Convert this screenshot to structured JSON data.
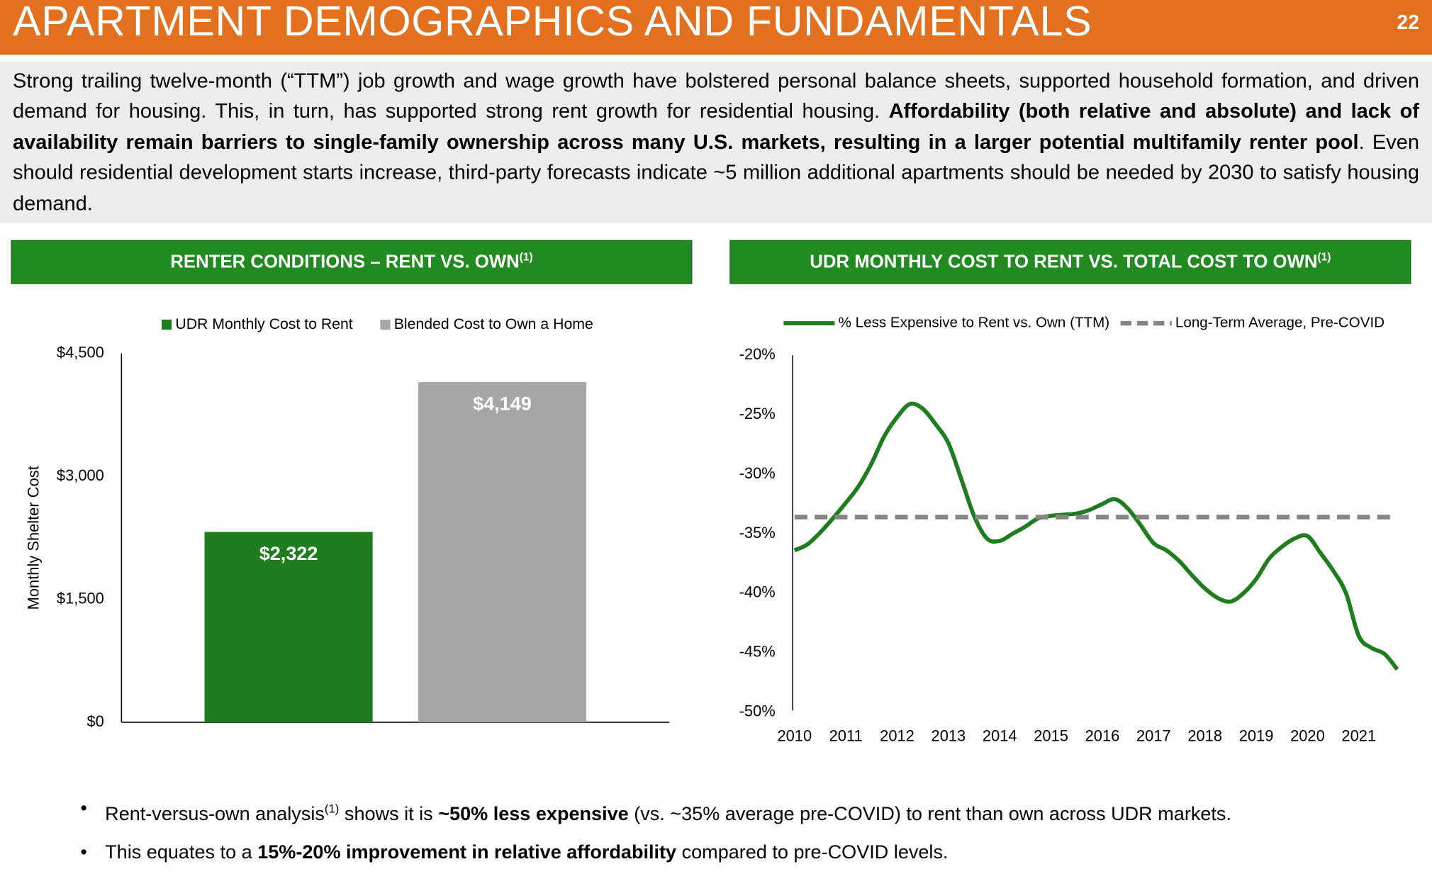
{
  "header": {
    "title": "APARTMENT DEMOGRAPHICS AND FUNDAMENTALS",
    "page": "22"
  },
  "intro": [
    {
      "text": "Strong trailing twelve-month (“TTM”) job growth and wage growth have bolstered personal balance sheets, supported household formation, and driven demand for housing. This, in turn, has supported strong rent growth for residential housing. "
    },
    {
      "text": "Affordability (both relative and absolute) and lack of availability remain barriers to single-family ownership across many U.S. markets, resulting in a larger potential multifamily renter pool",
      "bold": true
    },
    {
      "text": ". Even should residential development starts increase, third-party forecasts indicate ~5 million additional apartments should be needed by 2030 to satisfy housing demand."
    }
  ],
  "chart_data": [
    {
      "type": "bar",
      "title": "RENTER CONDITIONS – RENT VS. OWN",
      "title_note": "(1)",
      "ylabel": "Monthly Shelter Cost",
      "categories": [
        null
      ],
      "series": [
        {
          "name": "UDR Monthly Cost to Rent",
          "color": "#1f7d1f",
          "values": [
            2322
          ],
          "value_labels": [
            "$2,322"
          ]
        },
        {
          "name": "Blended Cost to Own a Home",
          "color": "#a6a6a6",
          "values": [
            4149
          ],
          "value_labels": [
            "$4,149"
          ]
        }
      ],
      "ylim": [
        0,
        4500
      ],
      "yticks": [
        {
          "value": 0,
          "label": "$0"
        },
        {
          "value": 1500,
          "label": "$1,500"
        },
        {
          "value": 3000,
          "label": "$3,000"
        },
        {
          "value": 4500,
          "label": "$4,500"
        }
      ],
      "grid": false
    },
    {
      "type": "line",
      "title": "UDR MONTHLY COST TO RENT VS. TOTAL COST TO OWN",
      "title_note": "(1)",
      "x": [
        2010,
        2010.25,
        2010.5,
        2010.75,
        2011,
        2011.25,
        2011.5,
        2011.75,
        2012,
        2012.25,
        2012.5,
        2012.75,
        2013,
        2013.25,
        2013.5,
        2013.75,
        2014,
        2014.25,
        2014.5,
        2014.75,
        2015,
        2015.25,
        2015.5,
        2015.75,
        2016,
        2016.25,
        2016.5,
        2016.75,
        2017,
        2017.25,
        2017.5,
        2017.75,
        2018,
        2018.25,
        2018.5,
        2018.75,
        2019,
        2019.25,
        2019.5,
        2019.75,
        2020,
        2020.25,
        2020.5,
        2020.75,
        2021,
        2021.25,
        2021.5,
        2021.75
      ],
      "series": [
        {
          "name": "% Less Expensive to Rent vs. Own (TTM)",
          "color": "#1f7d1f",
          "dashed": false,
          "values": [
            -36.4,
            -35.9,
            -34.9,
            -33.7,
            -32.4,
            -31.0,
            -29.1,
            -26.8,
            -25.2,
            -24.1,
            -24.5,
            -25.8,
            -27.4,
            -30.4,
            -33.5,
            -35.4,
            -35.6,
            -35.0,
            -34.4,
            -33.7,
            -33.5,
            -33.4,
            -33.3,
            -33.0,
            -32.5,
            -32.1,
            -32.9,
            -34.3,
            -35.8,
            -36.4,
            -37.3,
            -38.5,
            -39.6,
            -40.4,
            -40.7,
            -40.0,
            -38.8,
            -37.1,
            -36.1,
            -35.4,
            -35.2,
            -36.6,
            -38.1,
            -40.0,
            -43.6,
            -44.6,
            -45.1,
            -46.4
          ]
        },
        {
          "name": "Long-Term Average, Pre-COVID",
          "color": "#858585",
          "dashed": true,
          "values": [
            -33.6,
            -33.6,
            -33.6,
            -33.6,
            -33.6,
            -33.6,
            -33.6,
            -33.6,
            -33.6,
            -33.6,
            -33.6,
            -33.6,
            -33.6,
            -33.6,
            -33.6,
            -33.6,
            -33.6,
            -33.6,
            -33.6,
            -33.6,
            -33.6,
            -33.6,
            -33.6,
            -33.6,
            -33.6,
            -33.6,
            -33.6,
            -33.6,
            -33.6,
            -33.6,
            -33.6,
            -33.6,
            -33.6,
            -33.6,
            -33.6,
            -33.6,
            -33.6,
            -33.6,
            -33.6,
            -33.6,
            -33.6,
            -33.6,
            -33.6,
            -33.6,
            -33.6,
            -33.6,
            -33.6,
            -33.6
          ]
        }
      ],
      "xlim": [
        2010,
        2021.75
      ],
      "xticks": [
        2010,
        2011,
        2012,
        2013,
        2014,
        2015,
        2016,
        2017,
        2018,
        2019,
        2020,
        2021
      ],
      "ylim": [
        -50,
        -20
      ],
      "yticks": [
        {
          "value": -20,
          "label": "-20%"
        },
        {
          "value": -25,
          "label": "-25%"
        },
        {
          "value": -30,
          "label": "-30%"
        },
        {
          "value": -35,
          "label": "-35%"
        },
        {
          "value": -40,
          "label": "-40%"
        },
        {
          "value": -45,
          "label": "-45%"
        },
        {
          "value": -50,
          "label": "-50%"
        }
      ],
      "grid": false
    }
  ],
  "bullets": [
    [
      {
        "text": "Rent-versus-own analysis"
      },
      {
        "text": "(1)",
        "sup": true
      },
      {
        "text": " shows it is "
      },
      {
        "text": "~50% less expensive",
        "bold": true
      },
      {
        "text": " (vs. ~35% average pre-COVID) to rent than own across UDR markets."
      }
    ],
    [
      {
        "text": "This equates to a "
      },
      {
        "text": "15%-20% improvement in relative affordability",
        "bold": true
      },
      {
        "text": " compared to pre-COVID levels."
      }
    ]
  ]
}
